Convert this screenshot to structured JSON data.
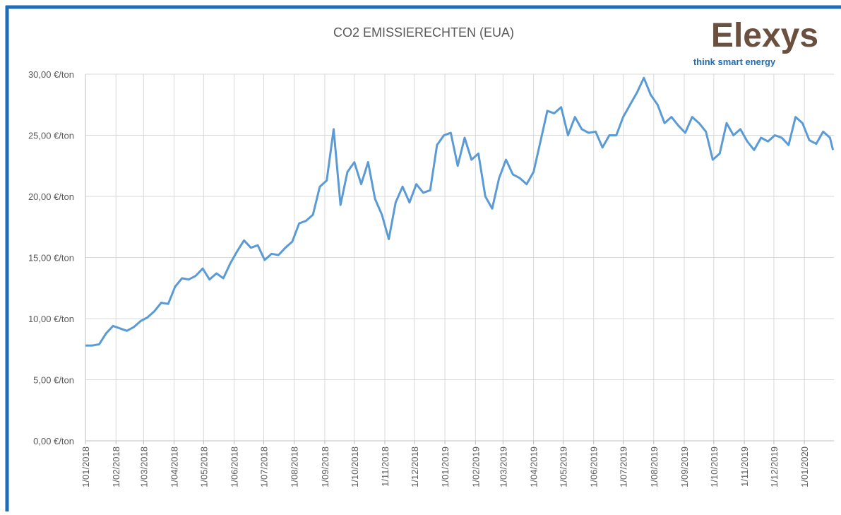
{
  "chart_data": {
    "type": "line",
    "title": "CO2 EMISSIERECHTEN (EUA)",
    "logo": {
      "name": "Elexys",
      "tagline": "think smart energy"
    },
    "x": [
      "2018-01-01",
      "2018-01-08",
      "2018-01-15",
      "2018-01-22",
      "2018-01-29",
      "2018-02-05",
      "2018-02-12",
      "2018-02-19",
      "2018-02-26",
      "2018-03-05",
      "2018-03-12",
      "2018-03-19",
      "2018-03-26",
      "2018-04-02",
      "2018-04-09",
      "2018-04-16",
      "2018-04-23",
      "2018-04-30",
      "2018-05-07",
      "2018-05-14",
      "2018-05-21",
      "2018-05-28",
      "2018-06-04",
      "2018-06-11",
      "2018-06-18",
      "2018-06-25",
      "2018-07-02",
      "2018-07-09",
      "2018-07-16",
      "2018-07-23",
      "2018-07-30",
      "2018-08-06",
      "2018-08-13",
      "2018-08-20",
      "2018-08-27",
      "2018-09-03",
      "2018-09-10",
      "2018-09-17",
      "2018-09-24",
      "2018-10-01",
      "2018-10-08",
      "2018-10-15",
      "2018-10-22",
      "2018-10-29",
      "2018-11-05",
      "2018-11-12",
      "2018-11-19",
      "2018-11-26",
      "2018-12-03",
      "2018-12-10",
      "2018-12-17",
      "2018-12-24",
      "2018-12-31",
      "2019-01-07",
      "2019-01-14",
      "2019-01-21",
      "2019-01-28",
      "2019-02-04",
      "2019-02-11",
      "2019-02-18",
      "2019-02-25",
      "2019-03-04",
      "2019-03-11",
      "2019-03-18",
      "2019-03-25",
      "2019-04-01",
      "2019-04-08",
      "2019-04-15",
      "2019-04-22",
      "2019-04-29",
      "2019-05-06",
      "2019-05-13",
      "2019-05-20",
      "2019-05-27",
      "2019-06-03",
      "2019-06-10",
      "2019-06-17",
      "2019-06-24",
      "2019-07-01",
      "2019-07-08",
      "2019-07-15",
      "2019-07-22",
      "2019-07-29",
      "2019-08-05",
      "2019-08-12",
      "2019-08-19",
      "2019-08-26",
      "2019-09-02",
      "2019-09-09",
      "2019-09-16",
      "2019-09-23",
      "2019-09-30",
      "2019-10-07",
      "2019-10-14",
      "2019-10-21",
      "2019-10-28",
      "2019-11-04",
      "2019-11-11",
      "2019-11-18",
      "2019-11-25",
      "2019-12-02",
      "2019-12-09",
      "2019-12-16",
      "2019-12-23",
      "2019-12-30",
      "2020-01-06",
      "2020-01-13",
      "2020-01-20",
      "2020-01-27",
      "2020-01-30"
    ],
    "series": [
      {
        "name": "EUA",
        "color": "#5b9bd5",
        "values": [
          7.8,
          7.8,
          7.9,
          8.8,
          9.4,
          9.2,
          9.0,
          9.3,
          9.8,
          10.1,
          10.6,
          11.3,
          11.2,
          12.6,
          13.3,
          13.2,
          13.5,
          14.1,
          13.2,
          13.7,
          13.3,
          14.5,
          15.5,
          16.4,
          15.8,
          16.0,
          14.8,
          15.3,
          15.2,
          15.8,
          16.3,
          17.8,
          18.0,
          18.5,
          20.8,
          21.3,
          25.5,
          19.3,
          22.0,
          22.8,
          21.0,
          22.8,
          19.8,
          18.5,
          16.5,
          19.5,
          20.8,
          19.5,
          21.0,
          20.3,
          20.5,
          24.2,
          25.0,
          25.2,
          22.5,
          24.8,
          23.0,
          23.5,
          20.0,
          19.0,
          21.5,
          23.0,
          21.8,
          21.5,
          21.0,
          22.0,
          24.5,
          27.0,
          26.8,
          27.3,
          25.0,
          26.5,
          25.5,
          25.2,
          25.3,
          24.0,
          25.0,
          25.0,
          26.5,
          27.5,
          28.5,
          29.7,
          28.3,
          27.5,
          26.0,
          26.5,
          25.8,
          25.2,
          26.5,
          26.0,
          25.3,
          23.0,
          23.5,
          26.0,
          25.0,
          25.5,
          24.5,
          23.8,
          24.8,
          24.5,
          25.0,
          24.8,
          24.2,
          26.5,
          26.0,
          24.6,
          24.3,
          25.3,
          24.8,
          23.8
        ]
      }
    ],
    "xlim": [
      "2018-01-01",
      "2020-01-31"
    ],
    "xticks": [
      {
        "value": "2018-01-01",
        "label": "1/01/2018"
      },
      {
        "value": "2018-02-01",
        "label": "1/02/2018"
      },
      {
        "value": "2018-03-01",
        "label": "1/03/2018"
      },
      {
        "value": "2018-04-01",
        "label": "1/04/2018"
      },
      {
        "value": "2018-05-01",
        "label": "1/05/2018"
      },
      {
        "value": "2018-06-01",
        "label": "1/06/2018"
      },
      {
        "value": "2018-07-01",
        "label": "1/07/2018"
      },
      {
        "value": "2018-08-01",
        "label": "1/08/2018"
      },
      {
        "value": "2018-09-01",
        "label": "1/09/2018"
      },
      {
        "value": "2018-10-01",
        "label": "1/10/2018"
      },
      {
        "value": "2018-11-01",
        "label": "1/11/2018"
      },
      {
        "value": "2018-12-01",
        "label": "1/12/2018"
      },
      {
        "value": "2019-01-01",
        "label": "1/01/2019"
      },
      {
        "value": "2019-02-01",
        "label": "1/02/2019"
      },
      {
        "value": "2019-03-01",
        "label": "1/03/2019"
      },
      {
        "value": "2019-04-01",
        "label": "1/04/2019"
      },
      {
        "value": "2019-05-01",
        "label": "1/05/2019"
      },
      {
        "value": "2019-06-01",
        "label": "1/06/2019"
      },
      {
        "value": "2019-07-01",
        "label": "1/07/2019"
      },
      {
        "value": "2019-08-01",
        "label": "1/08/2019"
      },
      {
        "value": "2019-09-01",
        "label": "1/09/2019"
      },
      {
        "value": "2019-10-01",
        "label": "1/10/2019"
      },
      {
        "value": "2019-11-01",
        "label": "1/11/2019"
      },
      {
        "value": "2019-12-01",
        "label": "1/12/2019"
      },
      {
        "value": "2020-01-01",
        "label": "1/01/2020"
      }
    ],
    "ylim": [
      0,
      30
    ],
    "yticks": [
      {
        "value": 0,
        "label": "0,00 €/ton"
      },
      {
        "value": 5,
        "label": "5,00 €/ton"
      },
      {
        "value": 10,
        "label": "10,00 €/ton"
      },
      {
        "value": 15,
        "label": "15,00 €/ton"
      },
      {
        "value": 20,
        "label": "20,00 €/ton"
      },
      {
        "value": 25,
        "label": "25,00 €/ton"
      },
      {
        "value": 30,
        "label": "30,00 €/ton"
      }
    ],
    "grid": true
  }
}
